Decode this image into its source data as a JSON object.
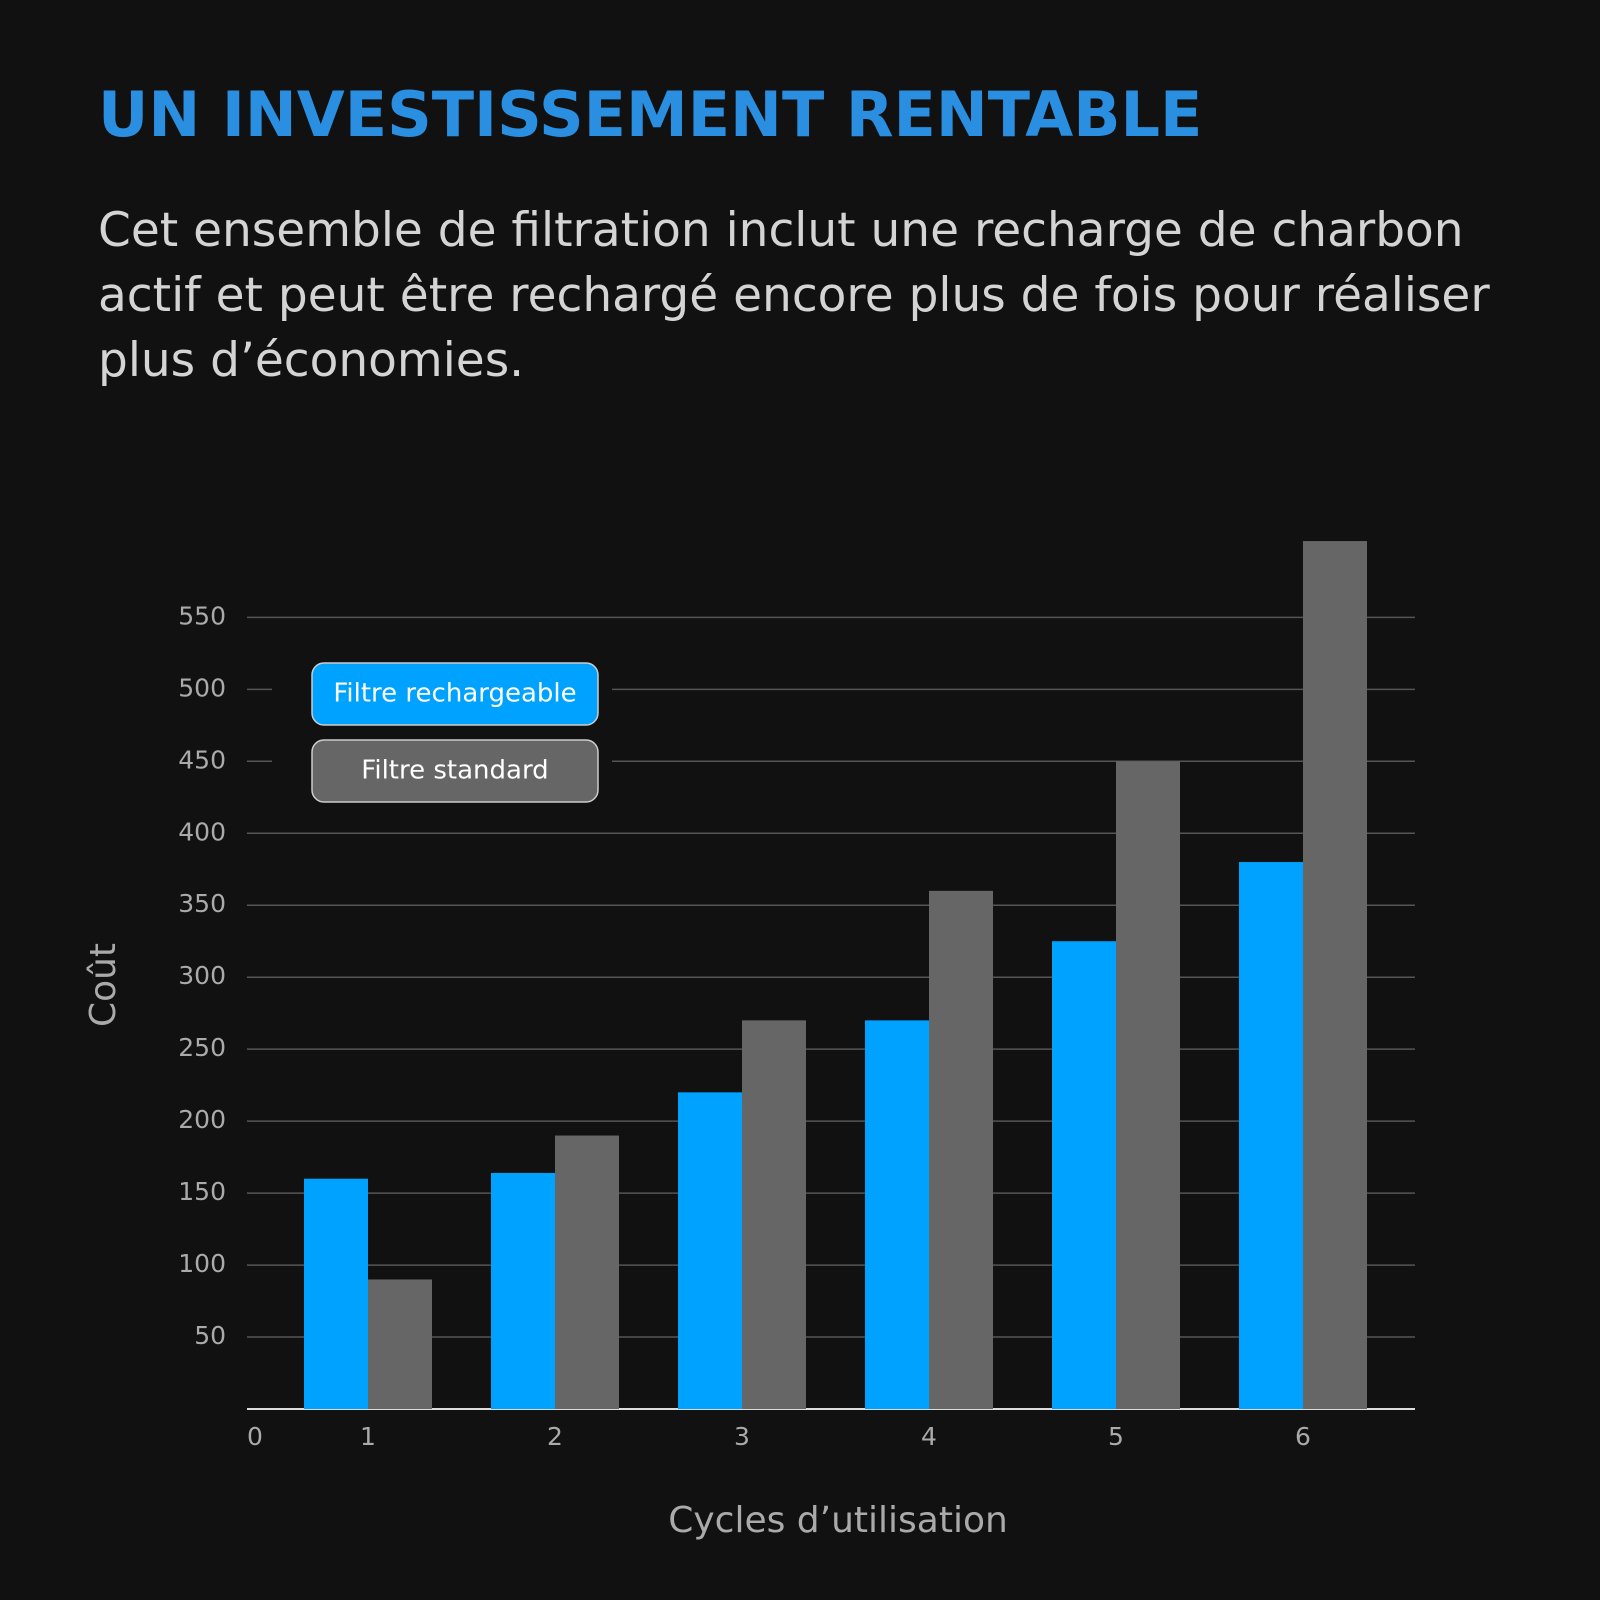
{
  "chart_data": {
    "type": "bar",
    "title": "UN INVESTISSEMENT RENTABLE",
    "subtitle": "Cet ensemble de filtration inclut une recharge de charbon actif et peut être rechargé encore plus de fois pour réaliser plus d’économies.",
    "x_label": "Cycles d’utilisation",
    "y_label": "Coût",
    "categories": [
      "1",
      "2",
      "3",
      "4",
      "5",
      "6"
    ],
    "series": [
      {
        "name": "Filtre rechargeable",
        "color": "#00a2ff",
        "values": [
          160,
          164,
          220,
          270,
          325,
          380
        ]
      },
      {
        "name": "Filtre standard",
        "color": "#666666",
        "values": [
          90,
          190,
          270,
          360,
          450,
          603
        ]
      }
    ],
    "ylim": [
      0,
      610
    ],
    "yticks": [
      0,
      50,
      100,
      150,
      200,
      250,
      300,
      350,
      400,
      450,
      500,
      550
    ],
    "grid": true,
    "legend": "upper left"
  }
}
